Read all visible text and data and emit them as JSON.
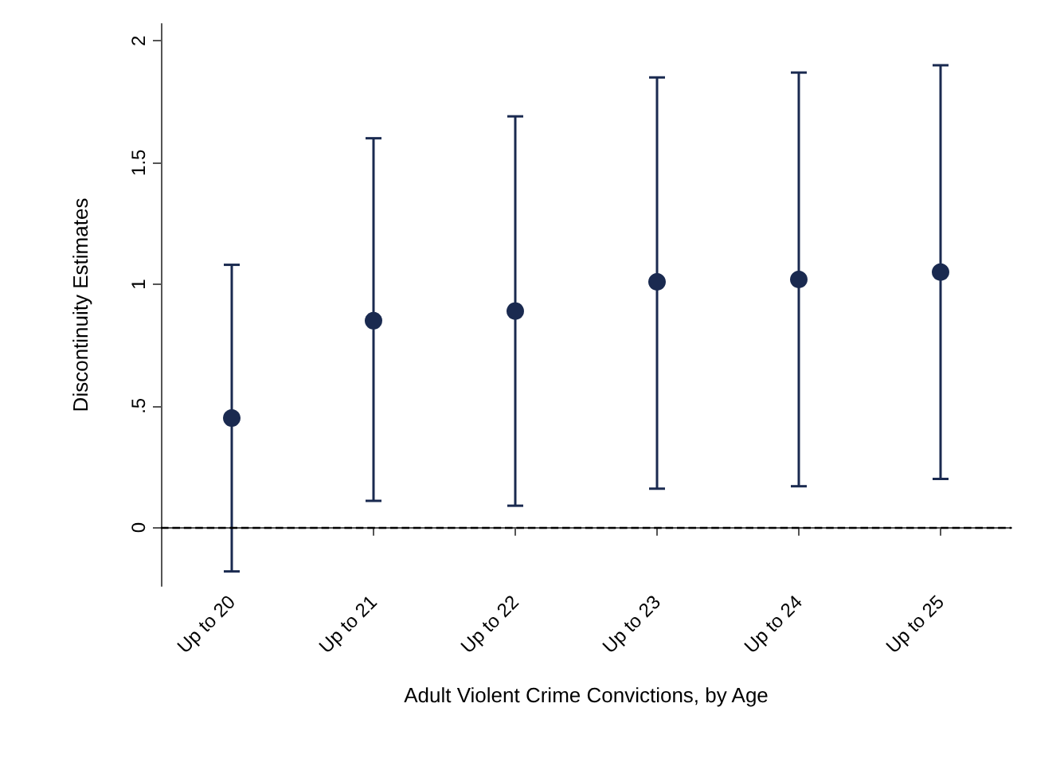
{
  "chart_data": {
    "type": "scatter",
    "xlabel": "Adult Violent Crime Convictions, by Age",
    "ylabel": "Discontinuity Estimates",
    "categories": [
      "Up to 20",
      "Up to 21",
      "Up to 22",
      "Up to 23",
      "Up to 24",
      "Up to 25"
    ],
    "series": [
      {
        "color": "#1a2a50",
        "values": [
          0.45,
          0.85,
          0.89,
          1.01,
          1.02,
          1.05
        ],
        "errors": [
          [
            -0.18,
            1.08
          ],
          [
            0.11,
            1.6
          ],
          [
            0.09,
            1.69
          ],
          [
            0.16,
            1.85
          ],
          [
            0.17,
            1.87
          ],
          [
            0.2,
            1.9
          ]
        ]
      }
    ],
    "ylim": [
      -0.24,
      2.07
    ],
    "yticks": [
      0,
      {
        "value": 0.5,
        "label": ".5"
      },
      1,
      1.5,
      2
    ],
    "ref_lines": [
      {
        "axis": "y",
        "value": 0,
        "line_style": "dashed",
        "color": "#000000"
      }
    ],
    "marker": "circle",
    "grid": false
  }
}
